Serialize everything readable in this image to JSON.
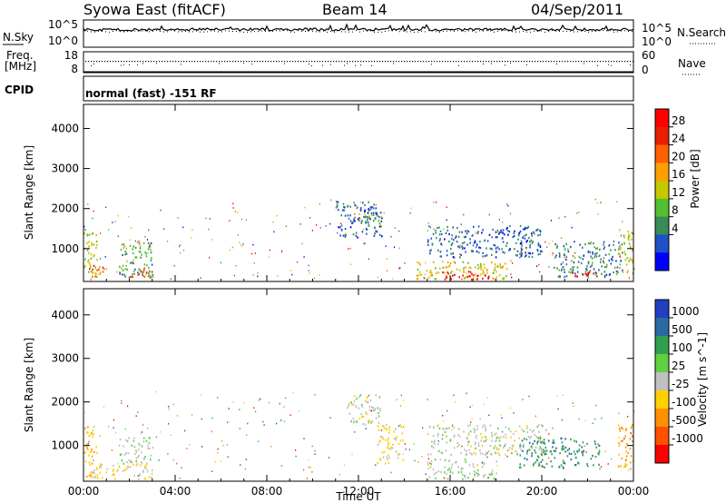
{
  "header": {
    "title_left": "Syowa East (fitACF)",
    "title_center": "Beam 14",
    "title_right": "04/Sep/2011"
  },
  "noise_panel": {
    "left_label": "N.Sky",
    "left_ticks": [
      "10^5",
      "10^0"
    ],
    "right_ticks": [
      "10^5",
      "10^0"
    ],
    "right_label": "N.Search"
  },
  "freq_panel": {
    "left_label_line1": "Freq.",
    "left_label_line2": "[MHz]",
    "left_ticks": [
      "18",
      "8"
    ],
    "right_ticks": [
      "60",
      "0"
    ],
    "right_label": "Nave"
  },
  "cpid_panel": {
    "label": "CPID",
    "mode_text": "normal (fast) -151 RF"
  },
  "colors": {
    "power_scale": [
      "#0000ff",
      "#2050c8",
      "#3a8a5a",
      "#52c030",
      "#c8c800",
      "#ffa000",
      "#ff6000",
      "#e82000",
      "#ff0000"
    ],
    "velocity_scale": [
      "#2040c0",
      "#2a6aa0",
      "#30a050",
      "#60d040",
      "#c0c0c0",
      "#ffd000",
      "#ff9000",
      "#ff5000",
      "#ff0000"
    ]
  },
  "chart_data": [
    {
      "type": "heatmap",
      "name": "power",
      "ylabel": "Slant Range [km]",
      "xlabel": "",
      "colorbar_label": "Power [dB]",
      "colorbar_ticks": [
        "28",
        "24",
        "20",
        "16",
        "12",
        "8",
        "4"
      ],
      "colorbar_range": [
        0,
        30
      ],
      "x_ticks": [
        "00:00",
        "04:00",
        "08:00",
        "12:00",
        "16:00",
        "20:00",
        "00:00"
      ],
      "x_range_hours": [
        0,
        24
      ],
      "y_ticks": [
        1000,
        2000,
        3000,
        4000
      ],
      "y_range_km": [
        180,
        4600
      ],
      "regions": [
        {
          "t0": 0.0,
          "t1": 0.6,
          "r0": 250,
          "r1": 1500,
          "value": 14
        },
        {
          "t0": 0.2,
          "t1": 0.9,
          "r0": 250,
          "r1": 600,
          "value": 22
        },
        {
          "t0": 1.5,
          "t1": 3.0,
          "r0": 300,
          "r1": 1200,
          "value": 10
        },
        {
          "t0": 2.0,
          "t1": 3.0,
          "r0": 300,
          "r1": 500,
          "value": 24
        },
        {
          "t0": 11.0,
          "t1": 13.0,
          "r0": 1300,
          "r1": 2200,
          "value": 6
        },
        {
          "t0": 12.0,
          "t1": 13.0,
          "r0": 1600,
          "r1": 1900,
          "value": 12
        },
        {
          "t0": 14.5,
          "t1": 18.5,
          "r0": 250,
          "r1": 700,
          "value": 16
        },
        {
          "t0": 15.5,
          "t1": 18.0,
          "r0": 250,
          "r1": 450,
          "value": 28
        },
        {
          "t0": 15.0,
          "t1": 20.0,
          "r0": 800,
          "r1": 1600,
          "value": 6
        },
        {
          "t0": 20.5,
          "t1": 23.5,
          "r0": 300,
          "r1": 1200,
          "value": 8
        },
        {
          "t0": 21.0,
          "t1": 22.5,
          "r0": 300,
          "r1": 450,
          "value": 26
        },
        {
          "t0": 23.3,
          "t1": 24.0,
          "r0": 400,
          "r1": 1500,
          "value": 14
        }
      ]
    },
    {
      "type": "heatmap",
      "name": "velocity",
      "ylabel": "Slant Range [km]",
      "xlabel": "Time UT",
      "colorbar_label": "Velocity [m s^-1]",
      "colorbar_ticks": [
        "1000",
        "500",
        "100",
        "25",
        "-25",
        "-100",
        "-500",
        "-1000"
      ],
      "colorbar_range": [
        -1200,
        1200
      ],
      "x_ticks": [
        "00:00",
        "04:00",
        "08:00",
        "12:00",
        "16:00",
        "20:00",
        "00:00"
      ],
      "x_range_hours": [
        0,
        24
      ],
      "y_ticks": [
        1000,
        2000,
        3000,
        4000
      ],
      "y_range_km": [
        180,
        4600
      ],
      "regions": [
        {
          "t0": 0.0,
          "t1": 0.6,
          "r0": 300,
          "r1": 1500,
          "value": -300
        },
        {
          "t0": 0.2,
          "t1": 3.0,
          "r0": 250,
          "r1": 600,
          "value": -150
        },
        {
          "t0": 1.5,
          "t1": 3.0,
          "r0": 600,
          "r1": 1200,
          "value": 60
        },
        {
          "t0": 11.5,
          "t1": 13.0,
          "r0": 1500,
          "r1": 2200,
          "value": 0
        },
        {
          "t0": 12.8,
          "t1": 14.0,
          "r0": 600,
          "r1": 1500,
          "value": -200
        },
        {
          "t0": 15.0,
          "t1": 18.0,
          "r0": 250,
          "r1": 700,
          "value": 60
        },
        {
          "t0": 15.0,
          "t1": 20.0,
          "r0": 800,
          "r1": 1500,
          "value": 0
        },
        {
          "t0": 19.0,
          "t1": 22.5,
          "r0": 500,
          "r1": 1200,
          "value": 600
        },
        {
          "t0": 23.3,
          "t1": 24.0,
          "r0": 400,
          "r1": 1500,
          "value": -500
        }
      ]
    }
  ]
}
